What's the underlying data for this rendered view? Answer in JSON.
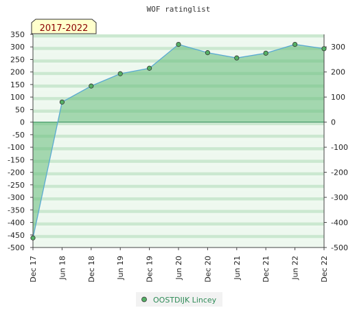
{
  "chart_data": {
    "type": "area",
    "title": "WOF ratinglist",
    "period_badge": "2017-2022",
    "xlabel": "",
    "ylabel": "",
    "categories": [
      "Dec 17",
      "Jun 18",
      "Dec 18",
      "Jun 19",
      "Dec 19",
      "Jun 20",
      "Dec 20",
      "Jun 21",
      "Dec 21",
      "Jun 22",
      "Dec 22"
    ],
    "series": [
      {
        "name": "OOSTDIJK Lincey",
        "values": [
          -462,
          80,
          144,
          193,
          215,
          310,
          277,
          256,
          275,
          310,
          293
        ]
      }
    ],
    "ylim": [
      -500,
      350
    ],
    "yticks_left": [
      350,
      300,
      250,
      200,
      150,
      100,
      50,
      0,
      -50,
      -100,
      -150,
      -200,
      -250,
      -300,
      -350,
      -400,
      -450,
      -500
    ],
    "yticks_right": [
      300,
      200,
      100,
      0,
      -100,
      -200,
      -300,
      -400,
      -500
    ],
    "grid": "horizontal-bands",
    "legend": "bottom-center",
    "colors": {
      "band_dark": "#c6e5cc",
      "band_light": "#eef8ef",
      "area_fill": "#66bb7a",
      "line": "#5aaad2",
      "marker": "#55b065",
      "zero_line": "#2e8b57",
      "badge_bg": "#ffffcc",
      "badge_text": "#8b0000"
    }
  }
}
